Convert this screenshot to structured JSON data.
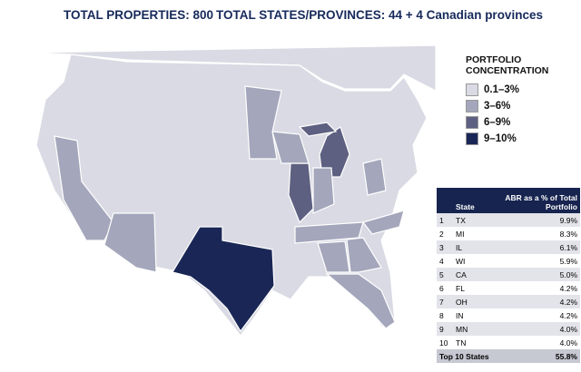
{
  "header": {
    "total_properties": "TOTAL PROPERTIES: 800",
    "total_states": "TOTAL STATES/PROVINCES: 44 + 4 Canadian provinces"
  },
  "legend": {
    "title": "PORTFOLIO CONCENTRATION",
    "items": [
      {
        "label": "0.1–3%",
        "color": "#d9dae3"
      },
      {
        "label": "3–6%",
        "color": "#a4a6bb"
      },
      {
        "label": "6–9%",
        "color": "#5d6080"
      },
      {
        "label": "9–10%",
        "color": "#1a2756"
      }
    ]
  },
  "table": {
    "header": [
      "State",
      "ABR as a % of Total Portfolio"
    ],
    "rows": [
      [
        "1",
        "TX",
        "9.9%"
      ],
      [
        "2",
        "MI",
        "8.3%"
      ],
      [
        "3",
        "IL",
        "6.1%"
      ],
      [
        "4",
        "WI",
        "5.9%"
      ],
      [
        "5",
        "CA",
        "5.0%"
      ],
      [
        "6",
        "FL",
        "4.2%"
      ],
      [
        "7",
        "OH",
        "4.2%"
      ],
      [
        "8",
        "IN",
        "4.2%"
      ],
      [
        "9",
        "MN",
        "4.0%"
      ],
      [
        "10",
        "TN",
        "4.0%"
      ]
    ],
    "total": [
      "Top 10 States",
      "55.8%"
    ]
  }
}
